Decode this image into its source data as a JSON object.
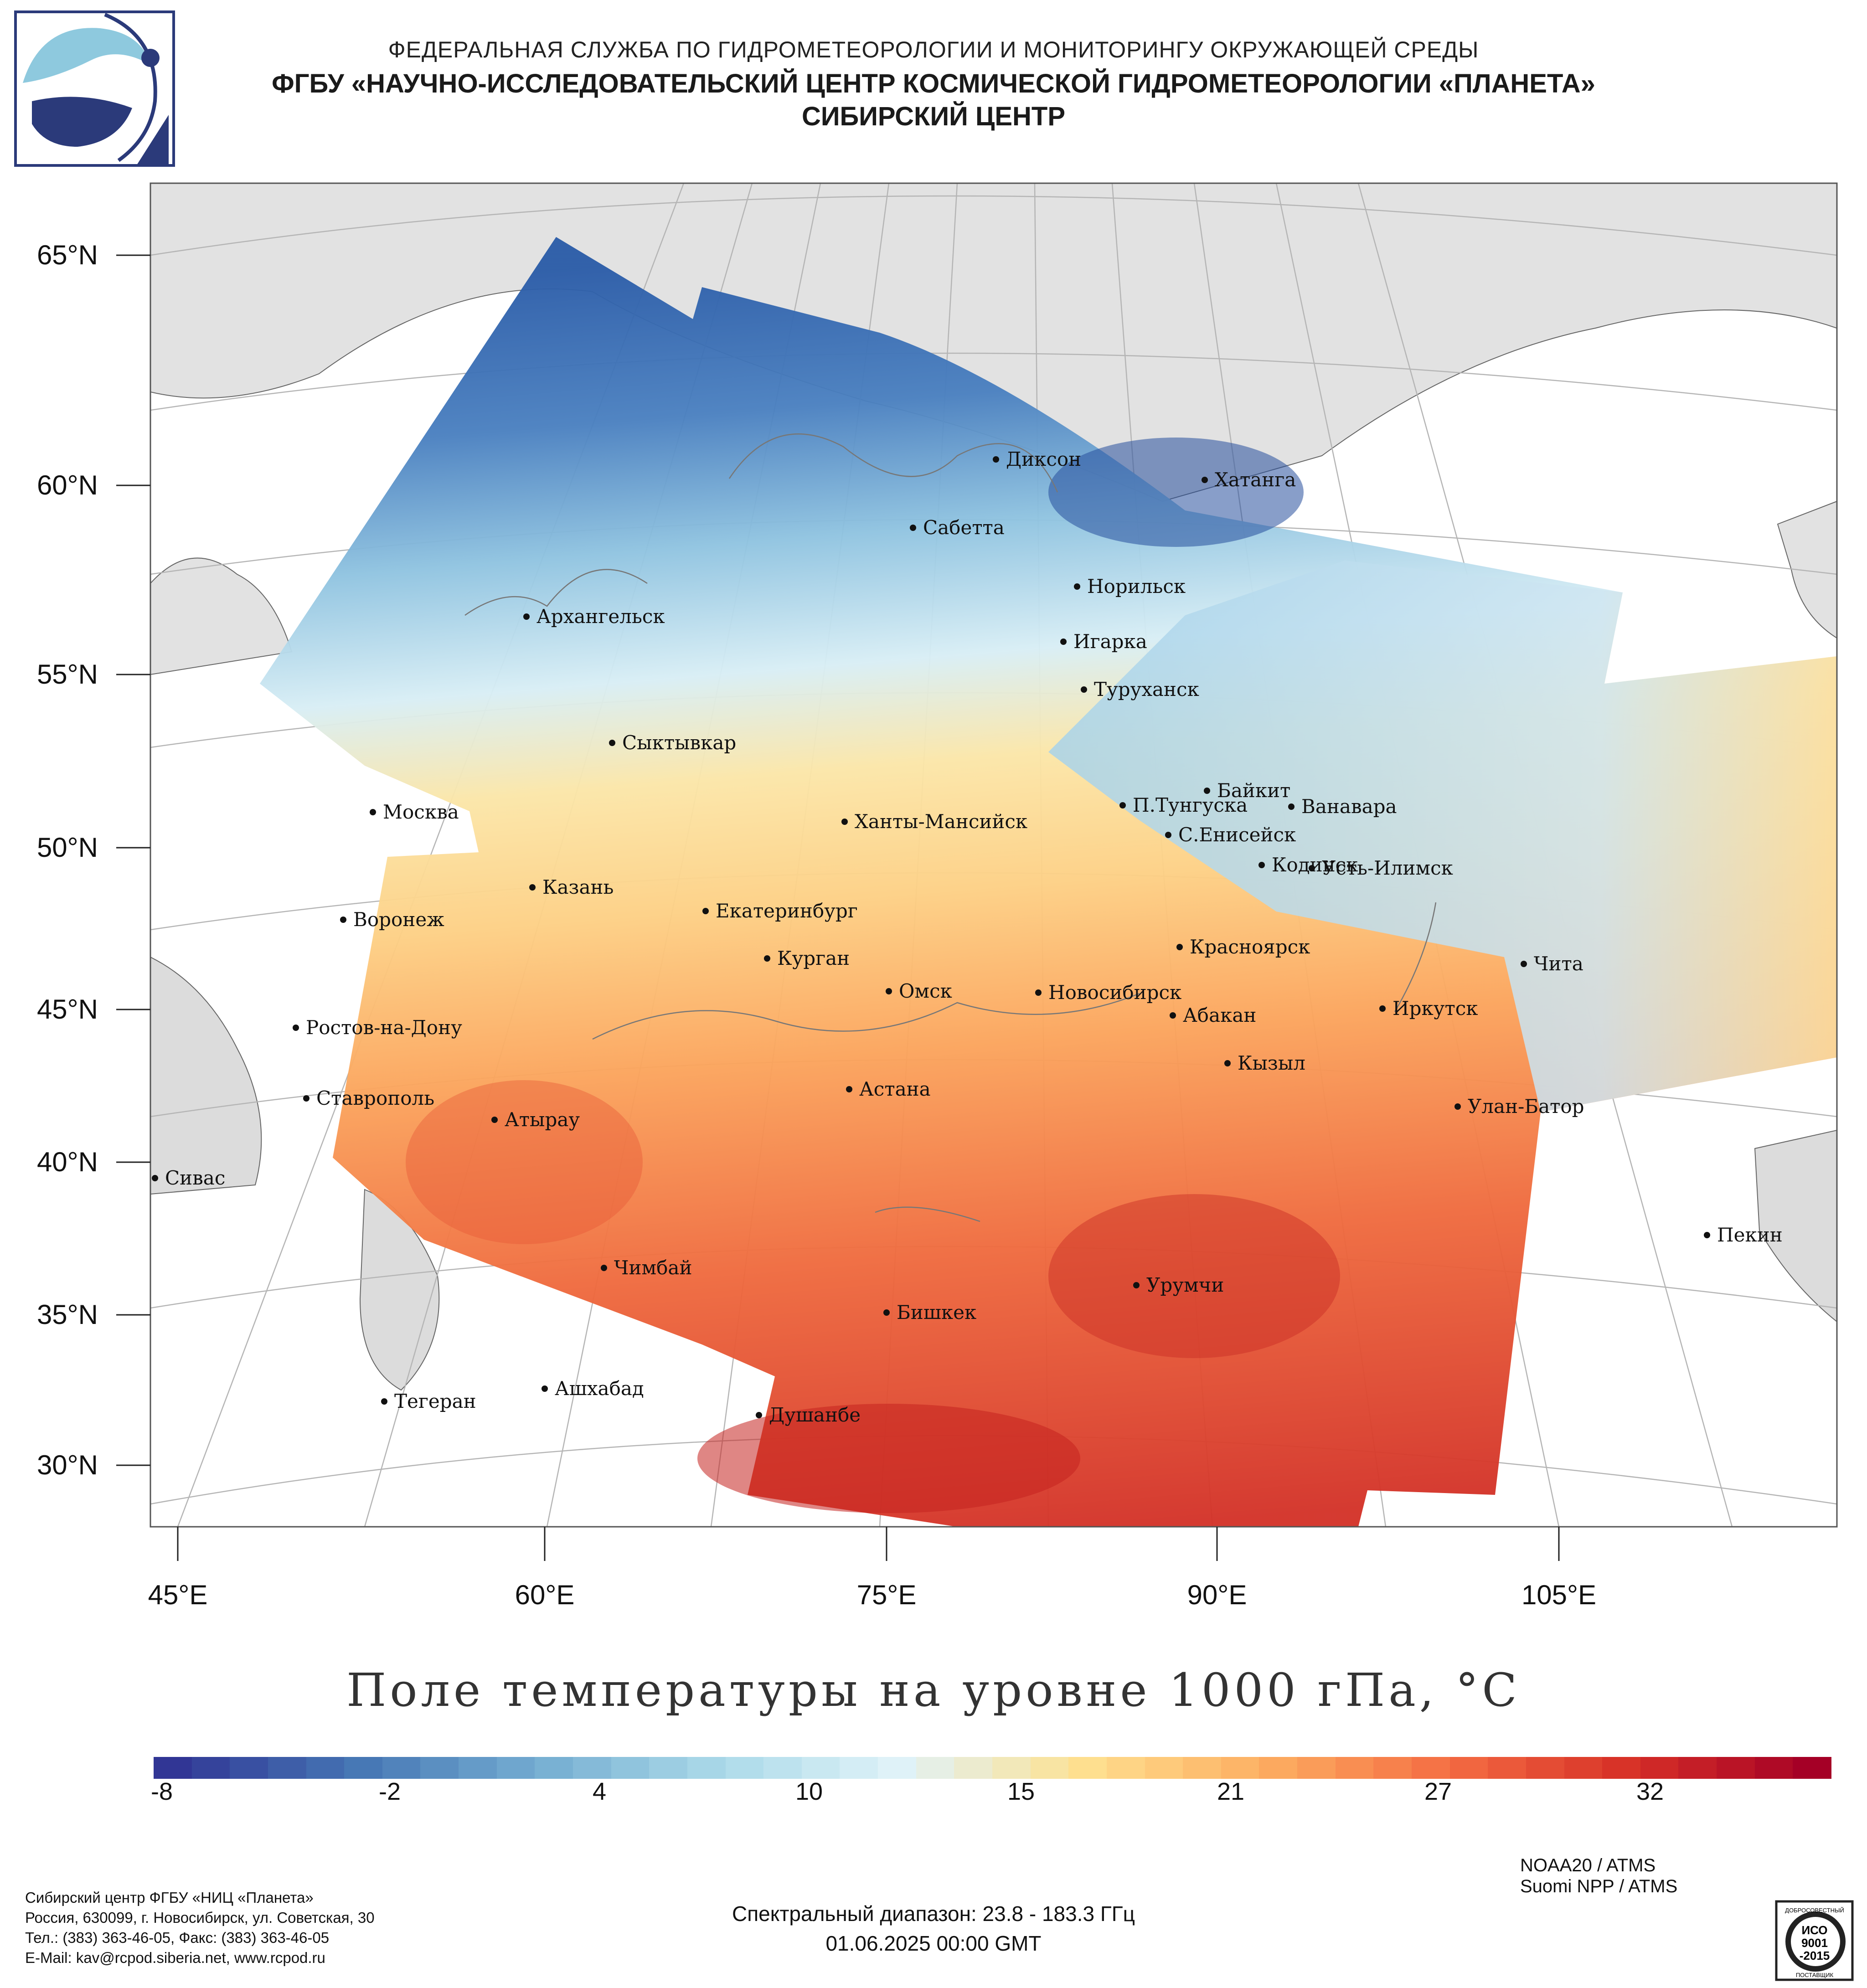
{
  "header": {
    "line1": "ФЕДЕРАЛЬНАЯ СЛУЖБА ПО ГИДРОМЕТЕОРОЛОГИИ И МОНИТОРИНГУ ОКРУЖАЮЩЕЙ СРЕДЫ",
    "line2": "ФГБУ «НАУЧНО-ИССЛЕДОВАТЕЛЬСКИЙ ЦЕНТР КОСМИЧЕСКОЙ ГИДРОМЕТЕОРОЛОГИИ «ПЛАНЕТА»",
    "line3": "СИБИРСКИЙ ЦЕНТР"
  },
  "map": {
    "lat_labels": [
      "65°N",
      "60°N",
      "55°N",
      "50°N",
      "45°N",
      "40°N",
      "35°N",
      "30°N"
    ],
    "lon_labels": [
      "45°E",
      "60°E",
      "75°E",
      "90°E",
      "105°E"
    ],
    "cities": [
      "Диксон",
      "Хатанга",
      "Сабетта",
      "Норильск",
      "Архангельск",
      "Игарка",
      "Туруханск",
      "Сыктывкар",
      "Байкит",
      "Москва",
      "П.Тунгуска",
      "Ванавара",
      "Ханты-Мансийск",
      "С.Енисейск",
      "Кодинск",
      "Усть-Илимск",
      "Казань",
      "Екатеринбург",
      "Воронеж",
      "Красноярск",
      "Курган",
      "Чита",
      "Омск",
      "Новосибирск",
      "Иркутск",
      "Ростов-на-Дону",
      "Абакан",
      "Кызыл",
      "Астана",
      "Ставрополь",
      "Улан-Батор",
      "Атырау",
      "Сивас",
      "Пекин",
      "Чимбай",
      "Урумчи",
      "Бишкек",
      "Ашхабад",
      "Тегеран",
      "Душанбе"
    ]
  },
  "title": "Поле температуры на уровне 1000 гПа, °C",
  "colorbar": {
    "ticks": [
      "-8",
      "-2",
      "4",
      "10",
      "15",
      "21",
      "27",
      "32"
    ],
    "colors": [
      "#313695",
      "#4575b4",
      "#74add1",
      "#abd9e9",
      "#e0f3f8",
      "#fee090",
      "#fdae61",
      "#f46d43",
      "#d73027",
      "#a50026"
    ]
  },
  "footer": {
    "org_lines": [
      "Сибирский центр ФГБУ «НИЦ «Планета»",
      "Россия, 630099, г. Новосибирск, ул. Советская, 30",
      "Тел.: (383) 363-46-05, Факс: (383) 363-46-05",
      "E-Mail: kav@rcpod.siberia.net, www.rcpod.ru"
    ],
    "satellites": [
      "NOAA20 / ATMS",
      "Suomi NPP / ATMS"
    ],
    "spectral": "Спектральный диапазон: 23.8 - 183.3 ГГц",
    "datetime": "01.06.2025 00:00 GMT",
    "iso_badge": {
      "top": "ДОБРОСОВЕСТНЫЙ",
      "iso": "ИСО",
      "num": "9001",
      "year": "-2015",
      "bottom": "ПОСТАВЩИК"
    }
  }
}
